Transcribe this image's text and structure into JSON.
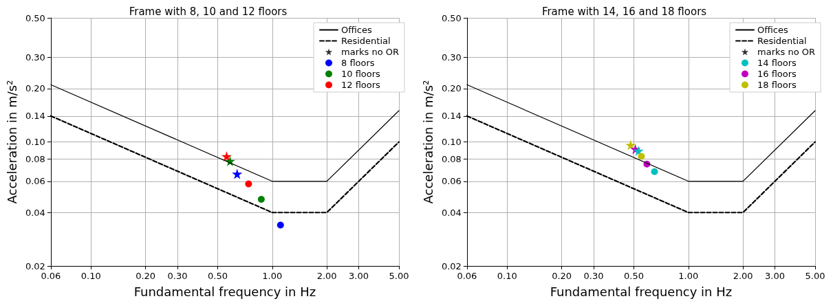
{
  "chart_data": [
    {
      "type": "line",
      "title": "Frame with 8, 10 and 12 floors",
      "xlabel": "Fundamental frequency in Hz",
      "ylabel": "Acceleration in m/s²",
      "log": "xy",
      "grid": true,
      "legend": "top right",
      "annotations": [
        "marks no OR"
      ],
      "xlim": [
        0.06,
        5
      ],
      "xticks": [
        0.06,
        {
          "value": 0.1,
          "label": "0.10"
        },
        {
          "value": 0.2,
          "label": "0.20"
        },
        {
          "value": 0.3,
          "label": "0.30"
        },
        {
          "value": 0.5,
          "label": "0.50"
        },
        {
          "value": 1,
          "label": "1.00"
        },
        {
          "value": 2,
          "label": "2.00"
        },
        {
          "value": 3,
          "label": "3.00"
        },
        {
          "value": 5,
          "label": "5.00"
        }
      ],
      "ylim": [
        0.02,
        0.5
      ],
      "yticks": [
        0.02,
        0.04,
        0.06,
        0.08,
        {
          "value": 0.1,
          "label": "0.10"
        },
        0.14,
        {
          "value": 0.2,
          "label": "0.20"
        },
        {
          "value": 0.3,
          "label": "0.30"
        },
        {
          "value": 0.5,
          "label": "0.50"
        }
      ],
      "series": [
        {
          "type": "line",
          "name": "Offices",
          "color": "#000000",
          "line_style": "solid",
          "marker": "none",
          "x": [
            0.06,
            1,
            2,
            5
          ],
          "values": [
            0.21,
            0.06,
            0.06,
            0.15
          ]
        },
        {
          "type": "line",
          "name": "Residential",
          "color": "#000000",
          "line_style": "dashed",
          "marker": "none",
          "x": [
            0.06,
            1,
            2,
            5
          ],
          "values": [
            0.14,
            0.04,
            0.04,
            0.1
          ]
        },
        {
          "type": "scatter",
          "color": "#ff0000",
          "marker": "star",
          "x": [
            0.56
          ],
          "values": [
            0.083
          ]
        },
        {
          "type": "scatter",
          "color": "#008000",
          "marker": "star",
          "x": [
            0.585
          ],
          "values": [
            0.078
          ]
        },
        {
          "type": "scatter",
          "color": "#0000ff",
          "marker": "star",
          "x": [
            0.64
          ],
          "values": [
            0.066
          ]
        },
        {
          "type": "scatter",
          "name": "8 floors",
          "color": "#0000ff",
          "marker": "circle",
          "x": [
            1.11
          ],
          "values": [
            0.034
          ]
        },
        {
          "type": "scatter",
          "name": "10 floors",
          "color": "#008000",
          "marker": "circle",
          "x": [
            0.87
          ],
          "values": [
            0.0475
          ]
        },
        {
          "type": "scatter",
          "name": "12 floors",
          "color": "#ff0000",
          "marker": "circle",
          "x": [
            0.74
          ],
          "values": [
            0.058
          ]
        }
      ]
    },
    {
      "type": "line",
      "title": "Frame with 14, 16 and 18 floors",
      "xlabel": "Fundamental frequency in Hz",
      "ylabel": "Acceleration in m/s²",
      "log": "xy",
      "grid": true,
      "legend": "top right",
      "annotations": [
        "marks no OR"
      ],
      "xlim": [
        0.06,
        5
      ],
      "xticks": [
        0.06,
        {
          "value": 0.1,
          "label": "0.10"
        },
        {
          "value": 0.2,
          "label": "0.20"
        },
        {
          "value": 0.3,
          "label": "0.30"
        },
        {
          "value": 0.5,
          "label": "0.50"
        },
        {
          "value": 1,
          "label": "1.00"
        },
        {
          "value": 2,
          "label": "2.00"
        },
        {
          "value": 3,
          "label": "3.00"
        },
        {
          "value": 5,
          "label": "5.00"
        }
      ],
      "ylim": [
        0.02,
        0.5
      ],
      "yticks": [
        0.02,
        0.04,
        0.06,
        0.08,
        {
          "value": 0.1,
          "label": "0.10"
        },
        0.14,
        {
          "value": 0.2,
          "label": "0.20"
        },
        {
          "value": 0.3,
          "label": "0.30"
        },
        {
          "value": 0.5,
          "label": "0.50"
        }
      ],
      "series": [
        {
          "type": "line",
          "name": "Offices",
          "color": "#000000",
          "line_style": "solid",
          "marker": "none",
          "x": [
            0.06,
            1,
            2,
            5
          ],
          "values": [
            0.21,
            0.06,
            0.06,
            0.15
          ]
        },
        {
          "type": "line",
          "name": "Residential",
          "color": "#000000",
          "line_style": "dashed",
          "marker": "none",
          "x": [
            0.06,
            1,
            2,
            5
          ],
          "values": [
            0.14,
            0.04,
            0.04,
            0.1
          ]
        },
        {
          "type": "scatter",
          "color": "#bfbf00",
          "marker": "star",
          "x": [
            0.48
          ],
          "values": [
            0.096
          ]
        },
        {
          "type": "scatter",
          "color": "#bf00bf",
          "marker": "star",
          "x": [
            0.51
          ],
          "values": [
            0.091
          ]
        },
        {
          "type": "scatter",
          "color": "#00bfbf",
          "marker": "star",
          "x": [
            0.53
          ],
          "values": [
            0.089
          ]
        },
        {
          "type": "scatter",
          "name": "14 floors",
          "color": "#00bfbf",
          "marker": "circle",
          "x": [
            0.65
          ],
          "values": [
            0.068
          ]
        },
        {
          "type": "scatter",
          "name": "16 floors",
          "color": "#bf00bf",
          "marker": "circle",
          "x": [
            0.59
          ],
          "values": [
            0.075
          ]
        },
        {
          "type": "scatter",
          "name": "18 floors",
          "color": "#bfbf00",
          "marker": "circle",
          "x": [
            0.55
          ],
          "values": [
            0.083
          ]
        }
      ]
    }
  ]
}
